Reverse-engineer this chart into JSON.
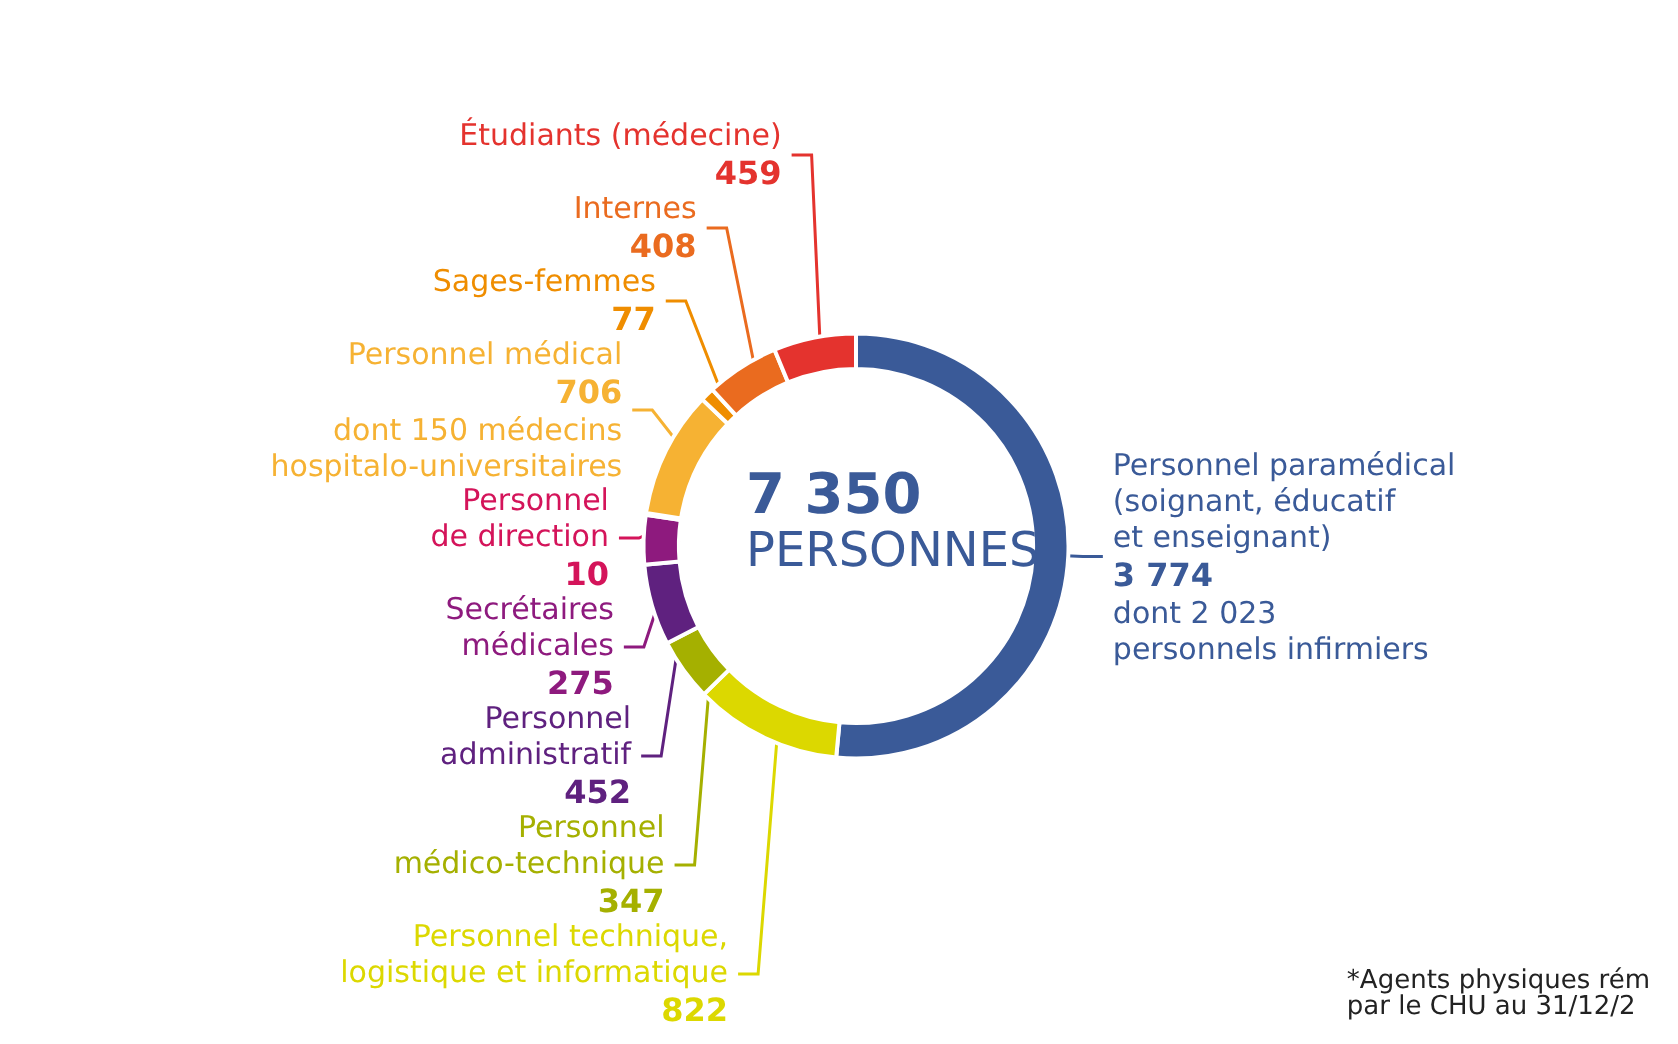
{
  "chart_data": {
    "type": "donut",
    "title": "7 350",
    "subtitle": "PERSONNES",
    "categories": [
      "Personnel paramédical\n(soignant, éducatif\net enseignant)",
      "Personnel technique,\nlogistique et informatique",
      "Personnel\nmédico-technique",
      "Personnel\nadministratif",
      "Secrétaires\nmédicales",
      "Personnel\nde direction",
      "Personnel médical",
      "Sages-femmes",
      "Internes",
      "Étudiants (médecine)"
    ],
    "values": [
      3774,
      822,
      347,
      452,
      275,
      10,
      706,
      77,
      408,
      459
    ],
    "value_labels": [
      "3 774",
      "822",
      "347",
      "452",
      "275",
      "10",
      "706",
      "77",
      "408",
      "459"
    ],
    "colors": [
      "#3a5a98",
      "#dcd800",
      "#a5b000",
      "#5f217f",
      "#8e1a7e",
      "#d4145a",
      "#f6b233",
      "#ef8d00",
      "#ea6b1f",
      "#e4332e"
    ],
    "annotations": [
      {
        "text": "dont 2 023\npersonnels infirmiers",
        "x": "Personnel paramédical\n(soignant, éducatif\net enseignant)"
      },
      {
        "text": "dont 150 médecins\nhospitalo-universitaires",
        "x": "Personnel médical"
      },
      "*Agents physiques rém\npar le CHU au 31/12/2"
    ],
    "legend": false
  }
}
